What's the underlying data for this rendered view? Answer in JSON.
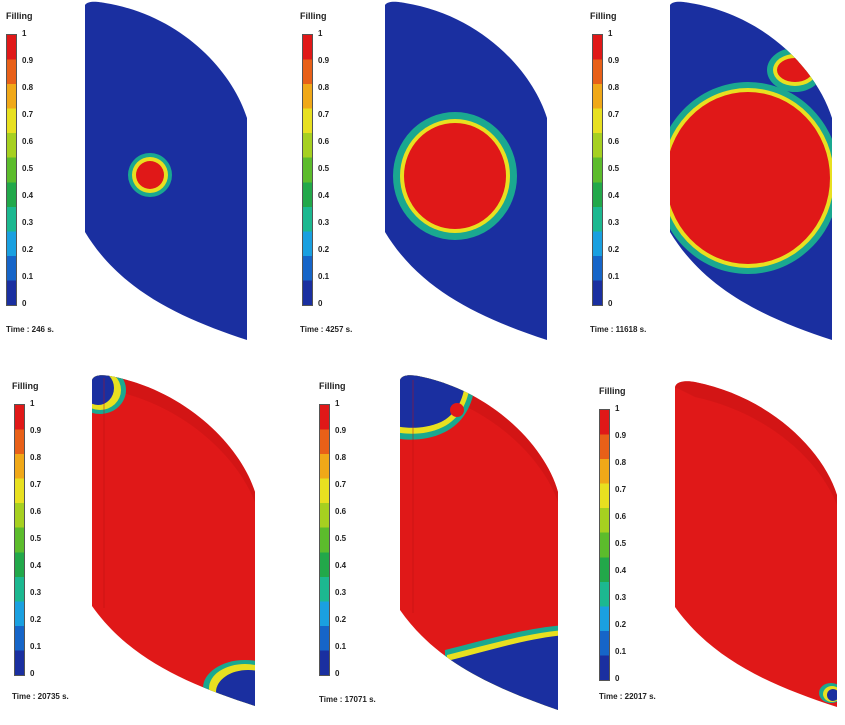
{
  "legend": {
    "title": "Filling",
    "ticks": [
      "1",
      "0.9",
      "0.8",
      "0.7",
      "0.6",
      "0.5",
      "0.4",
      "0.3",
      "0.2",
      "0.1",
      "0"
    ]
  },
  "colors": {
    "empty": "#1a2fa0",
    "full": "#e01818",
    "scale": [
      "#1a2fa0",
      "#1665c8",
      "#1aa0e0",
      "#1cb890",
      "#22a84a",
      "#5cbc2c",
      "#a6d020",
      "#e8e020",
      "#f0a818",
      "#e86018",
      "#e01818"
    ]
  },
  "panels": [
    {
      "time": "Time : 246 s."
    },
    {
      "time": "Time : 4257 s."
    },
    {
      "time": "Time : 11618 s."
    },
    {
      "time": "Time : 20735 s."
    },
    {
      "time": "Time : 17071 s."
    },
    {
      "time": "Time : 22017 s."
    }
  ]
}
